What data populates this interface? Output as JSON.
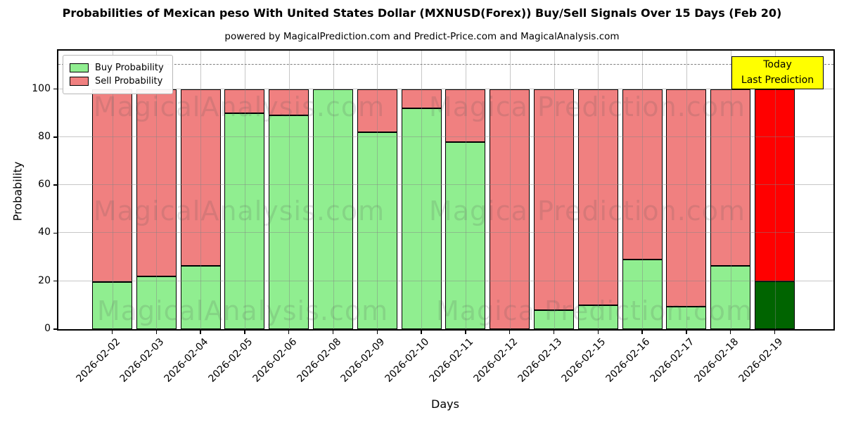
{
  "chart": {
    "title": "Probabilities of Mexican peso With United States Dollar (MXNUSD(Forex)) Buy/Sell Signals Over 15 Days (Feb 20)",
    "subtitle": "powered by MagicalPrediction.com and Predict-Price.com and MagicalAnalysis.com",
    "xlabel": "Days",
    "ylabel": "Probability",
    "legend": {
      "buy_label": "Buy Probability",
      "sell_label": "Sell Probability"
    },
    "annotation": {
      "line1": "Today",
      "line2": "Last Prediction",
      "bg_color": "#FFFF00"
    },
    "watermarks": {
      "left": "MagicalAnalysis.com",
      "right": "Magica Prediction.com"
    },
    "colors": {
      "buy": "#90EE90",
      "sell": "#F08080",
      "today_buy": "#006400",
      "today_sell": "#FF0000",
      "grid": "rgba(130,130,130,0.45)",
      "dashed": "#7f7f7f"
    }
  },
  "chart_data": {
    "type": "bar",
    "stacked": true,
    "title": "Probabilities of Mexican peso With United States Dollar (MXNUSD(Forex)) Buy/Sell Signals Over 15 Days (Feb 20)",
    "xlabel": "Days",
    "ylabel": "Probability",
    "categories": [
      "2026-02-02",
      "2026-02-03",
      "2026-02-04",
      "2026-02-05",
      "2026-02-06",
      "2026-02-08",
      "2026-02-09",
      "2026-02-10",
      "2026-02-11",
      "2026-02-12",
      "2026-02-13",
      "2026-02-15",
      "2026-02-16",
      "2026-02-17",
      "2026-02-18",
      "2026-02-19"
    ],
    "series": [
      {
        "name": "Buy Probability",
        "color": "#90EE90",
        "values": [
          19.5,
          22,
          26.5,
          90,
          89,
          100,
          82,
          92,
          78,
          0,
          8,
          10,
          29,
          9.5,
          26.5,
          20
        ]
      },
      {
        "name": "Sell Probability",
        "color": "#F08080",
        "values": [
          80.5,
          78,
          73.5,
          10,
          11,
          0,
          18,
          8,
          22,
          100,
          92,
          90,
          71,
          90.5,
          73.5,
          80
        ]
      }
    ],
    "today": {
      "index": 15,
      "buy_color": "#006400",
      "sell_color": "#FF0000"
    },
    "yticks": [
      0,
      20,
      40,
      60,
      80,
      100
    ],
    "ylim": [
      0,
      116
    ],
    "dashed_line_y": 110,
    "grid": true,
    "legend_position": "upper left"
  }
}
